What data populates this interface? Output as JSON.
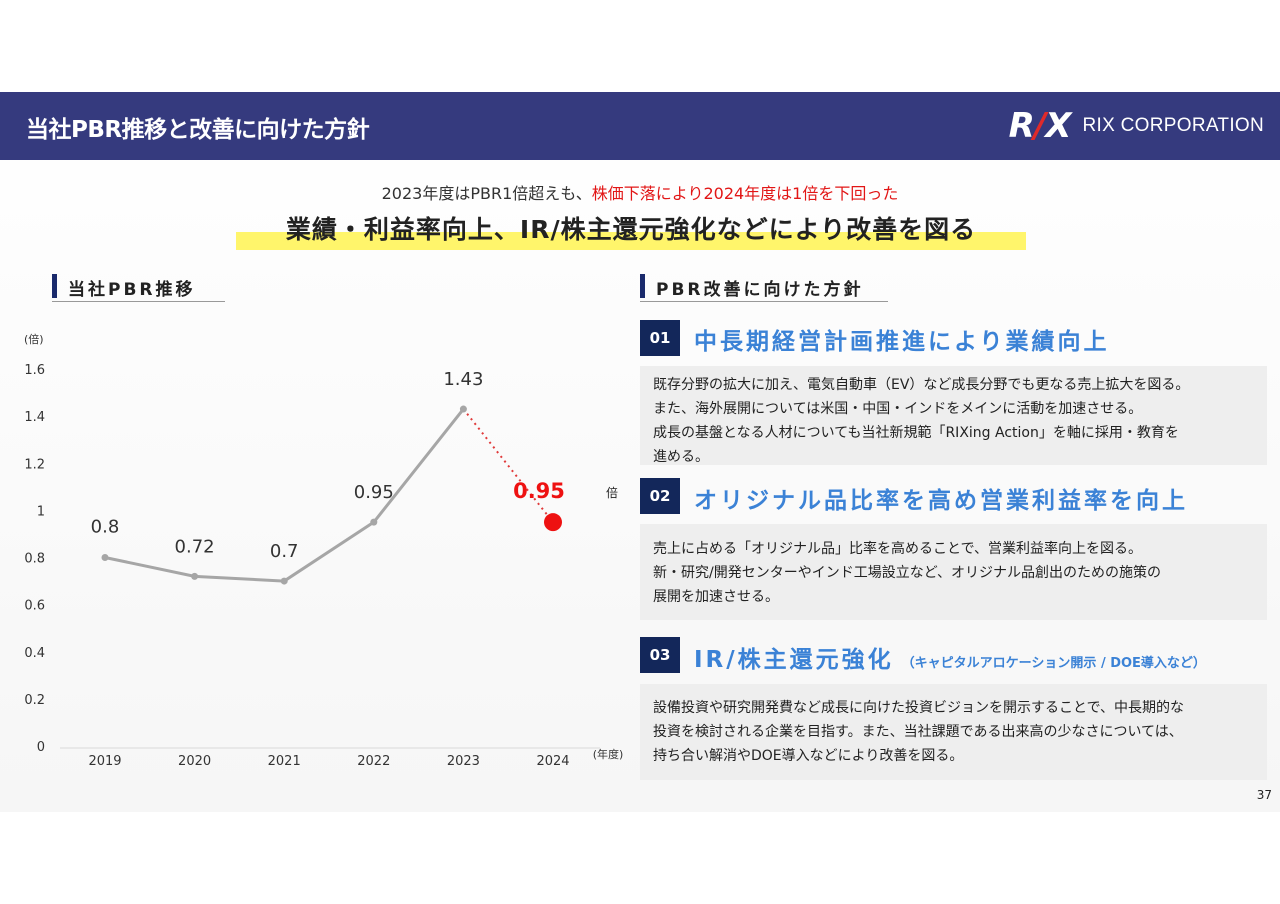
{
  "header": {
    "title": "当社PBR推移と改善に向けた方針",
    "logo_mark": "RIX",
    "logo_text": "RIX CORPORATION"
  },
  "subheadline": {
    "black": "2023年度はPBR1倍超えも、",
    "red": "株価下落により2024年度は1倍を下回った"
  },
  "main_message": "業績・利益率向上、IR/株主還元強化などにより改善を図る",
  "left_section_title": "当社PBR推移",
  "right_section_title": "PBR改善に向けた方針",
  "chart_data": {
    "type": "line",
    "ylabel": "(倍)",
    "xlabel": "(年度)",
    "ylim": [
      0,
      1.6
    ],
    "yticks": [
      "0",
      "0.2",
      "0.4",
      "0.6",
      "0.8",
      "1",
      "1.2",
      "1.4",
      "1.6"
    ],
    "categories": [
      "2019",
      "2020",
      "2021",
      "2022",
      "2023",
      "2024"
    ],
    "values": [
      0.8,
      0.72,
      0.7,
      0.95,
      1.43,
      0.95
    ],
    "data_labels": [
      "0.8",
      "0.72",
      "0.7",
      "0.95",
      "1.43",
      "0.95"
    ],
    "highlight_unit": "倍",
    "colors": {
      "line": "#a6a6a6",
      "highlight": "#ee1111"
    },
    "grid": false
  },
  "policies": [
    {
      "num": "01",
      "title": "中長期経営計画推進により業績向上",
      "title_small": "",
      "lines": [
        "既存分野の拡大に加え、電気自動車（EV）など成長分野でも更なる売上拡大を図る。",
        "また、海外展開については米国・中国・インドをメインに活動を加速させる。",
        "成長の基盤となる人材についても当社新規範「RIXing Action」を軸に採用・教育を",
        "進める。"
      ]
    },
    {
      "num": "02",
      "title": "オリジナル品比率を高め営業利益率を向上",
      "title_small": "",
      "lines": [
        "売上に占める「オリジナル品」比率を高めることで、営業利益率向上を図る。",
        "新・研究/開発センターやインド工場設立など、オリジナル品創出のための施策の",
        "展開を加速させる。"
      ]
    },
    {
      "num": "03",
      "title": "IR/株主還元強化",
      "title_small": "（キャピタルアロケーション開示 / DOE導入など）",
      "lines": [
        "設備投資や研究開発費など成長に向けた投資ビジョンを開示することで、中長期的な",
        "投資を検討される企業を目指す。また、当社課題である出来高の少なさについては、",
        "持ち合い解消やDOE導入などにより改善を図る。"
      ]
    }
  ],
  "page_number": "37"
}
